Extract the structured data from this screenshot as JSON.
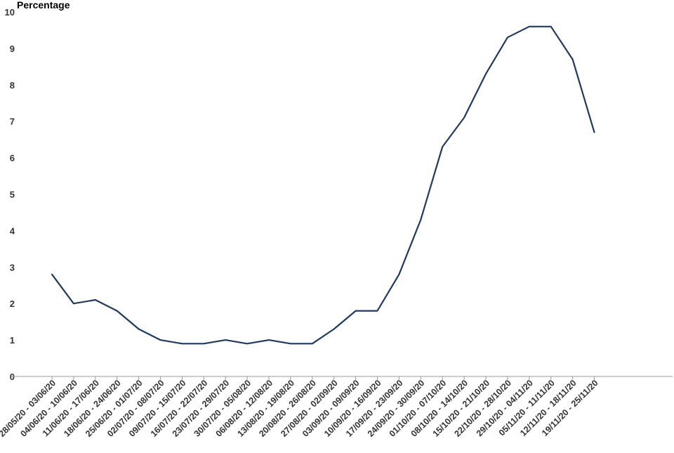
{
  "chart_data": {
    "type": "line",
    "ylabel": "Percentage",
    "xlabel": "",
    "ylim": [
      0,
      10
    ],
    "yticks": [
      0,
      1,
      2,
      3,
      4,
      5,
      6,
      7,
      8,
      9,
      10
    ],
    "grid": false,
    "line_color": "#1f3a5f",
    "categories": [
      "28/05/20 - 03/06/20",
      "04/06/20 - 10/06/20",
      "11/06/20 - 17/06/20",
      "18/06/20 - 24/06/20",
      "25/06/20 - 01/07/20",
      "02/07/20 - 08/07/20",
      "09/07/20 - 15/07/20",
      "16/07/20 - 22/07/20",
      "23/07/20 - 29/07/20",
      "30/07/20 - 05/08/20",
      "06/08/20 - 12/08/20",
      "13/08/20 - 19/08/20",
      "20/08/20 - 26/08/20",
      "27/08/20 - 02/09/20",
      "03/09/20 - 09/09/20",
      "10/09/20 - 16/09/20",
      "17/09/20 - 23/09/20",
      "24/09/20 - 30/09/20",
      "01/10/20 - 07/10/20",
      "08/10/20 - 14/10/20",
      "15/10/20 - 21/10/20",
      "22/10/20 - 28/10/20",
      "29/10/20 - 04/11/20",
      "05/11/20 - 11/11/20",
      "12/11/20 - 18/11/20",
      "19/11/20 - 25/11/20"
    ],
    "values": [
      2.8,
      2.0,
      2.1,
      1.8,
      1.3,
      1.0,
      0.9,
      0.9,
      1.0,
      0.9,
      1.0,
      0.9,
      0.9,
      1.3,
      1.8,
      1.8,
      2.8,
      4.3,
      6.3,
      7.1,
      8.3,
      9.3,
      9.6,
      9.6,
      8.7,
      6.7
    ]
  }
}
